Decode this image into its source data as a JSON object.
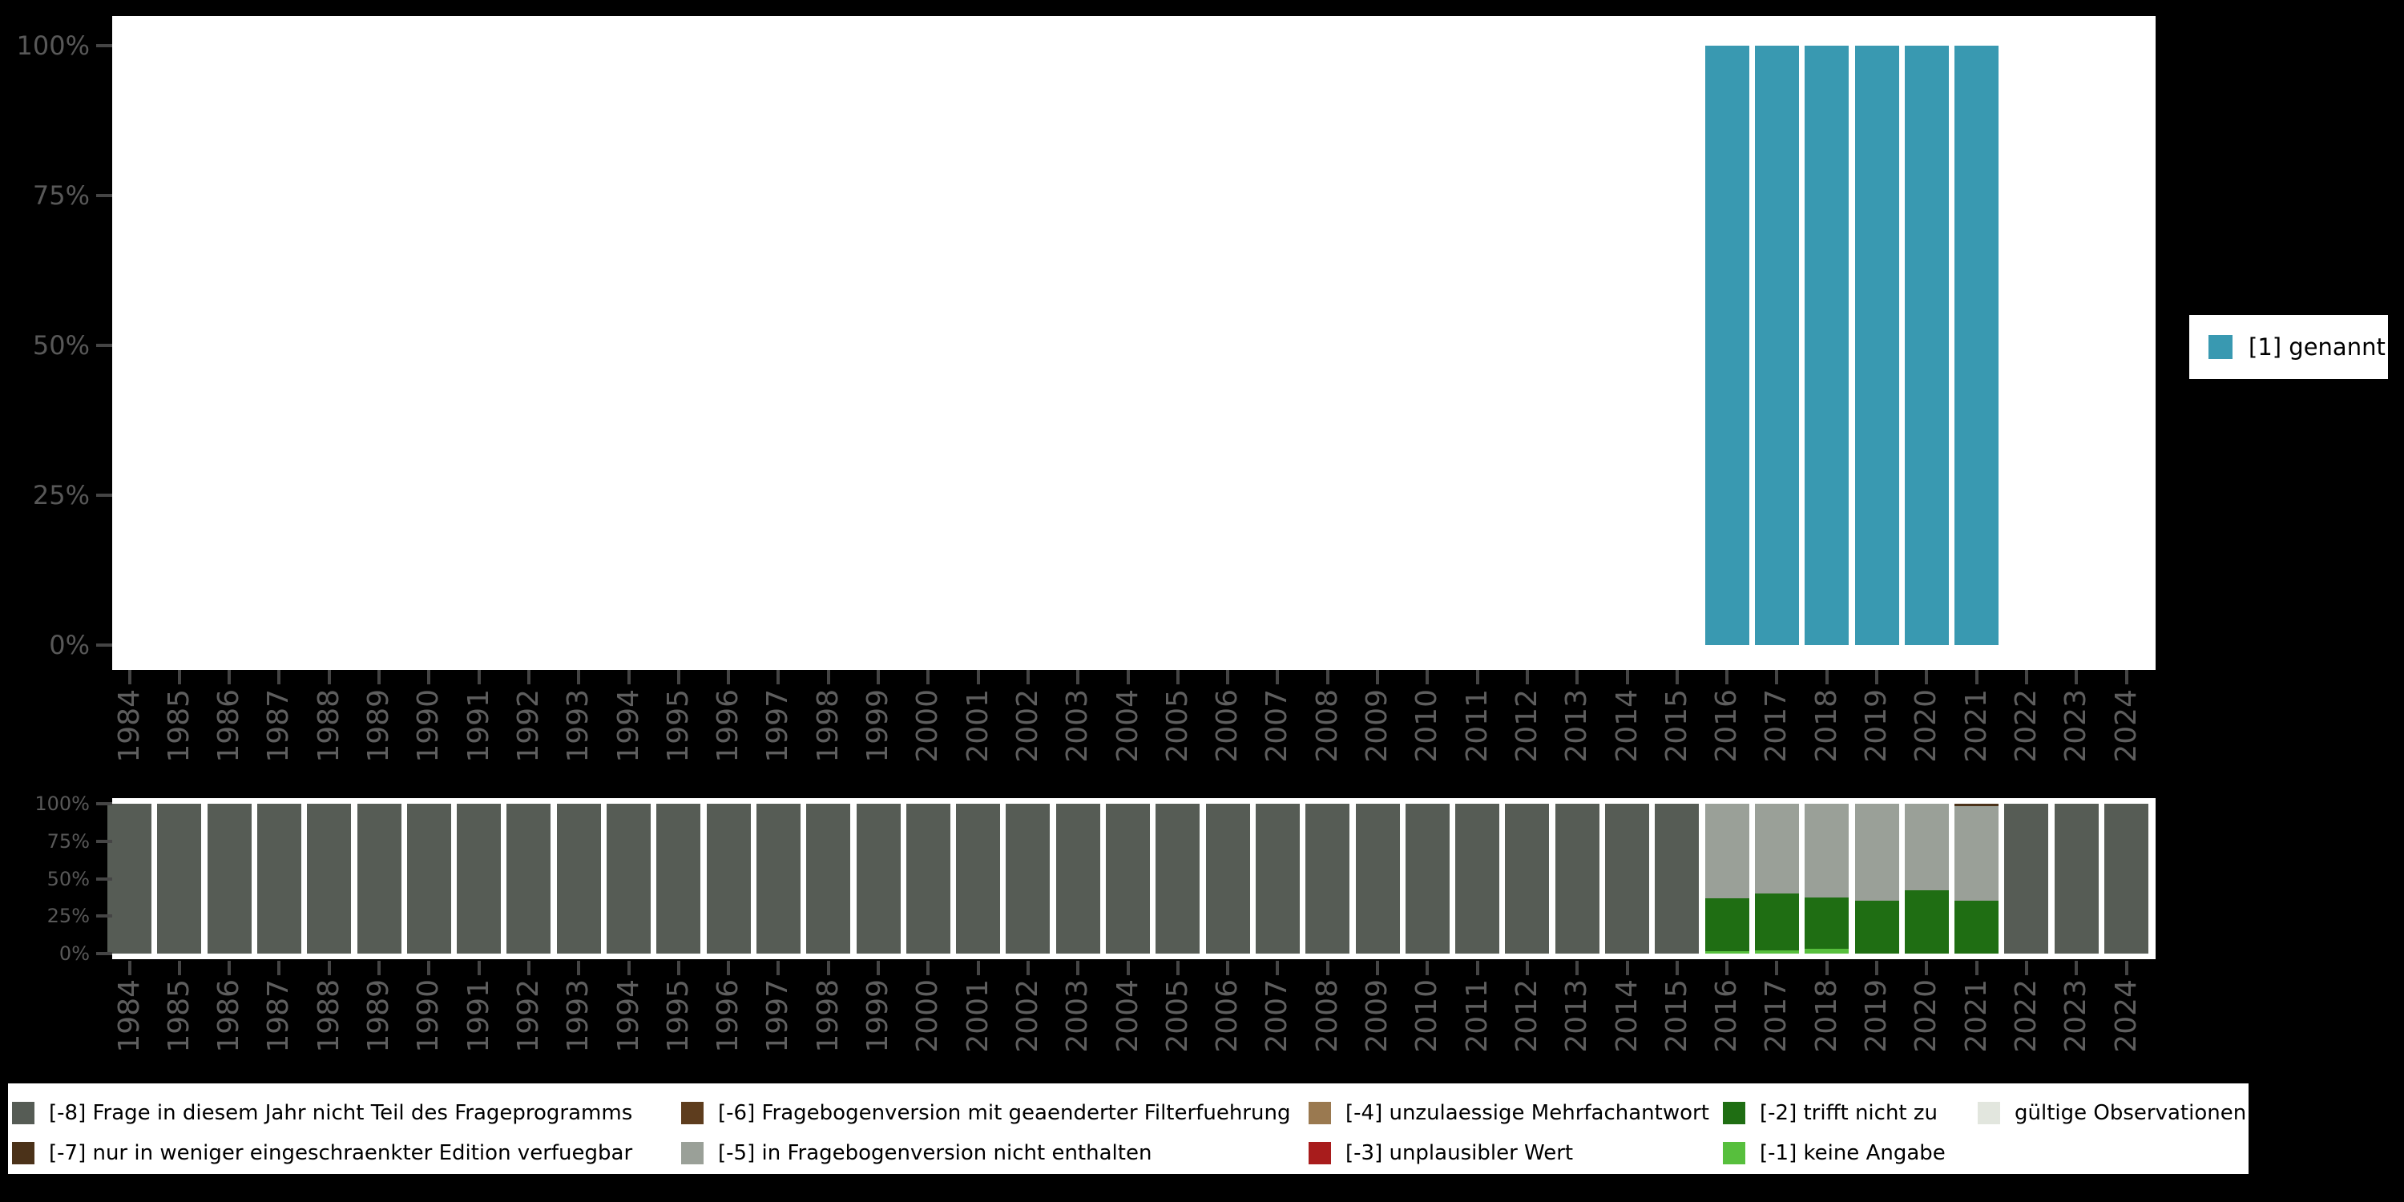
{
  "years": [
    "1984",
    "1985",
    "1986",
    "1987",
    "1988",
    "1989",
    "1990",
    "1991",
    "1992",
    "1993",
    "1994",
    "1995",
    "1996",
    "1997",
    "1998",
    "1999",
    "2000",
    "2001",
    "2002",
    "2003",
    "2004",
    "2005",
    "2006",
    "2007",
    "2008",
    "2009",
    "2010",
    "2011",
    "2012",
    "2013",
    "2014",
    "2015",
    "2016",
    "2017",
    "2018",
    "2019",
    "2020",
    "2021",
    "2022",
    "2023",
    "2024"
  ],
  "percent_ticks": [
    "100%",
    "75%",
    "50%",
    "25%",
    "0%"
  ],
  "colors": {
    "background": "#000000",
    "plot_background": "#ffffff",
    "axis_text": "#585858",
    "tick_mark": "#454545",
    "genannt": "#3999B1",
    "minus8": "#565C55",
    "minus7": "#4B3219",
    "minus6": "#5E3D1E",
    "minus5": "#9AA098",
    "minus4": "#9A7950",
    "minus3": "#A81C1C",
    "minus2": "#1F6E13",
    "minus1": "#57BF3D",
    "valid": "#E2E6DE"
  },
  "chart_data": [
    {
      "type": "bar",
      "stacked": true,
      "title": "",
      "xlabel": "",
      "ylabel": "",
      "ylim": [
        0,
        100
      ],
      "ytick_labels": [
        "100%",
        "75%",
        "50%",
        "25%",
        "0%"
      ],
      "categories": [
        "1984",
        "1985",
        "1986",
        "1987",
        "1988",
        "1989",
        "1990",
        "1991",
        "1992",
        "1993",
        "1994",
        "1995",
        "1996",
        "1997",
        "1998",
        "1999",
        "2000",
        "2001",
        "2002",
        "2003",
        "2004",
        "2005",
        "2006",
        "2007",
        "2008",
        "2009",
        "2010",
        "2011",
        "2012",
        "2013",
        "2014",
        "2015",
        "2016",
        "2017",
        "2018",
        "2019",
        "2020",
        "2021",
        "2022",
        "2023",
        "2024"
      ],
      "series": [
        {
          "name": "[1] genannt",
          "color_key": "genannt",
          "values": [
            0,
            0,
            0,
            0,
            0,
            0,
            0,
            0,
            0,
            0,
            0,
            0,
            0,
            0,
            0,
            0,
            0,
            0,
            0,
            0,
            0,
            0,
            0,
            0,
            0,
            0,
            0,
            0,
            0,
            0,
            0,
            0,
            100,
            100,
            100,
            100,
            100,
            100,
            0,
            0,
            0
          ]
        }
      ],
      "legend": [
        {
          "label": "[1] genannt",
          "color_key": "genannt"
        }
      ],
      "legend_position": "right"
    },
    {
      "type": "bar",
      "stacked": true,
      "title": "",
      "xlabel": "",
      "ylabel": "",
      "ylim": [
        0,
        100
      ],
      "ytick_labels": [
        "100%",
        "75%",
        "50%",
        "25%",
        "0%"
      ],
      "categories": [
        "1984",
        "1985",
        "1986",
        "1987",
        "1988",
        "1989",
        "1990",
        "1991",
        "1992",
        "1993",
        "1994",
        "1995",
        "1996",
        "1997",
        "1998",
        "1999",
        "2000",
        "2001",
        "2002",
        "2003",
        "2004",
        "2005",
        "2006",
        "2007",
        "2008",
        "2009",
        "2010",
        "2011",
        "2012",
        "2013",
        "2014",
        "2015",
        "2016",
        "2017",
        "2018",
        "2019",
        "2020",
        "2021",
        "2022",
        "2023",
        "2024"
      ],
      "stack_order_bottom_to_top": [
        "valid",
        "minus1",
        "minus2",
        "minus3",
        "minus4",
        "minus5",
        "minus6",
        "minus7",
        "minus8"
      ],
      "series": [
        {
          "name": "gültige Observationen",
          "color_key": "valid",
          "values": [
            0,
            0,
            0,
            0,
            0,
            0,
            0,
            0,
            0,
            0,
            0,
            0,
            0,
            0,
            0,
            0,
            0,
            0,
            0,
            0,
            0,
            0,
            0,
            0,
            0,
            0,
            0,
            0,
            0,
            0,
            0,
            0,
            0,
            0,
            0,
            0,
            0,
            0,
            0,
            0,
            0
          ]
        },
        {
          "name": "[-1] keine Angabe",
          "color_key": "minus1",
          "values": [
            0,
            0,
            0,
            0,
            0,
            0,
            0,
            0,
            0,
            0,
            0,
            0,
            0,
            0,
            0,
            0,
            0,
            0,
            0,
            0,
            0,
            0,
            0,
            0,
            0,
            0,
            0,
            0,
            0,
            0,
            0,
            0,
            1.5,
            2,
            3,
            0,
            0,
            0,
            0,
            0,
            0
          ]
        },
        {
          "name": "[-2] trifft nicht zu",
          "color_key": "minus2",
          "values": [
            0,
            0,
            0,
            0,
            0,
            0,
            0,
            0,
            0,
            0,
            0,
            0,
            0,
            0,
            0,
            0,
            0,
            0,
            0,
            0,
            0,
            0,
            0,
            0,
            0,
            0,
            0,
            0,
            0,
            0,
            0,
            0,
            35.5,
            38,
            34.5,
            35.5,
            42,
            35.5,
            0,
            0,
            0
          ]
        },
        {
          "name": "[-3] unplausibler Wert",
          "color_key": "minus3",
          "values": [
            0,
            0,
            0,
            0,
            0,
            0,
            0,
            0,
            0,
            0,
            0,
            0,
            0,
            0,
            0,
            0,
            0,
            0,
            0,
            0,
            0,
            0,
            0,
            0,
            0,
            0,
            0,
            0,
            0,
            0,
            0,
            0,
            0,
            0,
            0,
            0,
            0,
            0,
            0,
            0,
            0
          ]
        },
        {
          "name": "[-4] unzulaessige Mehrfachantwort",
          "color_key": "minus4",
          "values": [
            0,
            0,
            0,
            0,
            0,
            0,
            0,
            0,
            0,
            0,
            0,
            0,
            0,
            0,
            0,
            0,
            0,
            0,
            0,
            0,
            0,
            0,
            0,
            0,
            0,
            0,
            0,
            0,
            0,
            0,
            0,
            0,
            0,
            0,
            0,
            0,
            0,
            0,
            0,
            0,
            0
          ]
        },
        {
          "name": "[-5] in Fragebogenversion nicht enthalten",
          "color_key": "minus5",
          "values": [
            0,
            0,
            0,
            0,
            0,
            0,
            0,
            0,
            0,
            0,
            0,
            0,
            0,
            0,
            0,
            0,
            0,
            0,
            0,
            0,
            0,
            0,
            0,
            0,
            0,
            0,
            0,
            0,
            0,
            0,
            0,
            0,
            63,
            60,
            62.5,
            64.5,
            58,
            63,
            0,
            0,
            0
          ]
        },
        {
          "name": "[-6] Fragebogenversion mit geaenderter Filterfuehrung",
          "color_key": "minus6",
          "values": [
            0,
            0,
            0,
            0,
            0,
            0,
            0,
            0,
            0,
            0,
            0,
            0,
            0,
            0,
            0,
            0,
            0,
            0,
            0,
            0,
            0,
            0,
            0,
            0,
            0,
            0,
            0,
            0,
            0,
            0,
            0,
            0,
            0,
            0,
            0,
            0,
            0,
            0,
            0,
            0,
            0
          ]
        },
        {
          "name": "[-7] nur in weniger eingeschraenkter Edition verfuegbar",
          "color_key": "minus7",
          "values": [
            0,
            0,
            0,
            0,
            0,
            0,
            0,
            0,
            0,
            0,
            0,
            0,
            0,
            0,
            0,
            0,
            0,
            0,
            0,
            0,
            0,
            0,
            0,
            0,
            0,
            0,
            0,
            0,
            0,
            0,
            0,
            0,
            0,
            0,
            0,
            0,
            0,
            1.5,
            0,
            0,
            0
          ]
        },
        {
          "name": "[-8] Frage in diesem Jahr nicht Teil des Frageprogramms",
          "color_key": "minus8",
          "values": [
            100,
            100,
            100,
            100,
            100,
            100,
            100,
            100,
            100,
            100,
            100,
            100,
            100,
            100,
            100,
            100,
            100,
            100,
            100,
            100,
            100,
            100,
            100,
            100,
            100,
            100,
            100,
            100,
            100,
            100,
            100,
            100,
            0,
            0,
            0,
            0,
            0,
            0,
            100,
            100,
            100
          ]
        }
      ],
      "legend": [
        {
          "label": "[-8] Frage in diesem Jahr nicht Teil des Frageprogramms",
          "color_key": "minus8"
        },
        {
          "label": "[-7] nur in weniger eingeschraenkter Edition verfuegbar",
          "color_key": "minus7"
        },
        {
          "label": "[-6] Fragebogenversion mit geaenderter Filterfuehrung",
          "color_key": "minus6"
        },
        {
          "label": "[-5] in Fragebogenversion nicht enthalten",
          "color_key": "minus5"
        },
        {
          "label": "[-4] unzulaessige Mehrfachantwort",
          "color_key": "minus4"
        },
        {
          "label": "[-3] unplausibler Wert",
          "color_key": "minus3"
        },
        {
          "label": "[-2] trifft nicht zu",
          "color_key": "minus2"
        },
        {
          "label": "[-1] keine Angabe",
          "color_key": "minus1"
        },
        {
          "label": "gültige Observationen",
          "color_key": "valid"
        }
      ],
      "legend_position": "bottom"
    }
  ]
}
